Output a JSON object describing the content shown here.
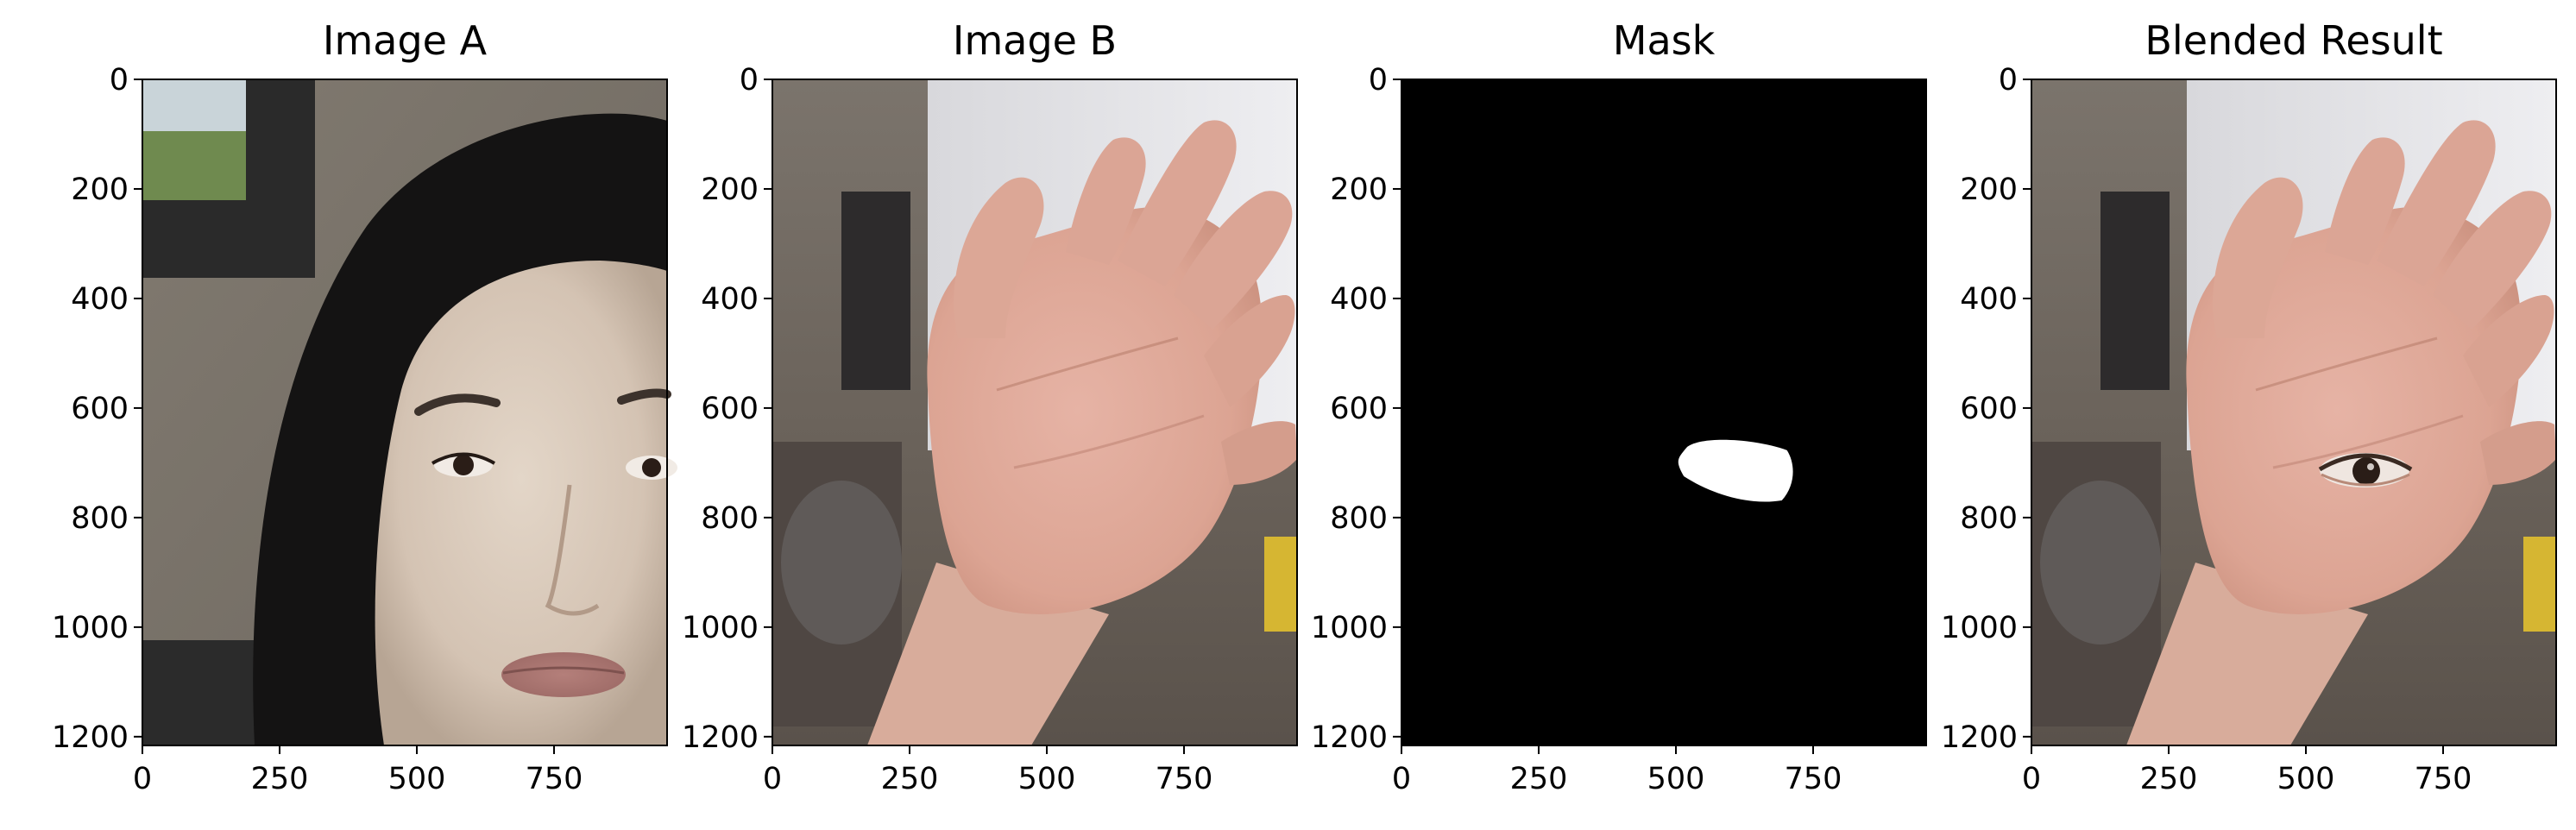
{
  "figure": {
    "panels": [
      {
        "title": "Image A",
        "image": "photo-face"
      },
      {
        "title": "Image B",
        "image": "photo-hand"
      },
      {
        "title": "Mask",
        "image": "binary-mask"
      },
      {
        "title": "Blended Result",
        "image": "photo-hand-with-eye"
      }
    ]
  },
  "chart_data": {
    "type": "image_grid",
    "panels": [
      {
        "title": "Image A",
        "xlim": [
          0,
          956
        ],
        "ylim": [
          1216,
          0
        ],
        "xticks": [
          0,
          250,
          500,
          750
        ],
        "yticks": [
          0,
          200,
          400,
          600,
          800,
          1000,
          1200
        ],
        "content": "portrait of a woman's face with long dark hair against a textured gray wall, window at top left"
      },
      {
        "title": "Image B",
        "xlim": [
          0,
          956
        ],
        "ylim": [
          1216,
          0
        ],
        "xticks": [
          0,
          250,
          500,
          750
        ],
        "yticks": [
          0,
          200,
          400,
          600,
          800,
          1000,
          1200
        ],
        "content": "open hand with palm facing the camera, blurred room background"
      },
      {
        "title": "Mask",
        "xlim": [
          0,
          956
        ],
        "ylim": [
          1216,
          0
        ],
        "xticks": [
          0,
          250,
          500,
          750
        ],
        "yticks": [
          0,
          200,
          400,
          600,
          800,
          1000,
          1200
        ],
        "content": "black image with a white eye-shaped blob",
        "blob_extent": {
          "x": [
            505,
            715
          ],
          "y": [
            655,
            775
          ]
        }
      },
      {
        "title": "Blended Result",
        "xlim": [
          0,
          956
        ],
        "ylim": [
          1216,
          0
        ],
        "xticks": [
          0,
          250,
          500,
          750
        ],
        "yticks": [
          0,
          200,
          400,
          600,
          800,
          1000,
          1200
        ],
        "content": "hand photo with an eye blended onto the palm"
      }
    ],
    "grid": false,
    "legend": "none"
  }
}
